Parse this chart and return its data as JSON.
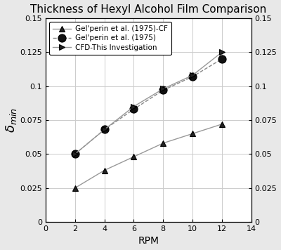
{
  "title": "Thickness of Hexyl Alcohol Film Comparison",
  "xlabel": "RPM",
  "xlim": [
    0,
    14
  ],
  "ylim": [
    0,
    0.15
  ],
  "xticks": [
    0,
    2,
    4,
    6,
    8,
    10,
    12,
    14
  ],
  "yticks": [
    0,
    0.025,
    0.05,
    0.075,
    0.1,
    0.125,
    0.15
  ],
  "ytick_labels": [
    "0",
    "0.025",
    "0.05",
    "0.075",
    "0.1",
    "0.125",
    "0.15"
  ],
  "series": [
    {
      "label": "Gel'perin et al. (1975)-CF",
      "x": [
        2,
        4,
        6,
        8,
        10,
        12
      ],
      "y": [
        0.025,
        0.038,
        0.048,
        0.058,
        0.065,
        0.072
      ],
      "linestyle": "-",
      "marker": "^",
      "color": "#999999",
      "markersize": 6,
      "linewidth": 1.0,
      "markerfacecolor": "#222222",
      "markeredgecolor": "#000000"
    },
    {
      "label": "Gel'perin et al. (1975)",
      "x": [
        2,
        4,
        6,
        8,
        10,
        12
      ],
      "y": [
        0.05,
        0.068,
        0.083,
        0.097,
        0.107,
        0.12
      ],
      "linestyle": "--",
      "marker": "o",
      "color": "#888888",
      "markersize": 8,
      "linewidth": 1.0,
      "markerfacecolor": "#111111",
      "markeredgecolor": "#000000"
    },
    {
      "label": "CFD-This Investigation",
      "x": [
        2,
        4,
        6,
        8,
        10,
        12
      ],
      "y": [
        0.05,
        0.068,
        0.085,
        0.098,
        0.108,
        0.125
      ],
      "linestyle": "-",
      "marker": ">",
      "color": "#999999",
      "markersize": 6,
      "linewidth": 1.0,
      "markerfacecolor": "#222222",
      "markeredgecolor": "#000000"
    }
  ],
  "grid_color": "#cccccc",
  "background_color": "#e8e8e8",
  "plot_bg_color": "#ffffff",
  "title_fontsize": 11,
  "label_fontsize": 10,
  "tick_fontsize": 8,
  "legend_fontsize": 7.5
}
